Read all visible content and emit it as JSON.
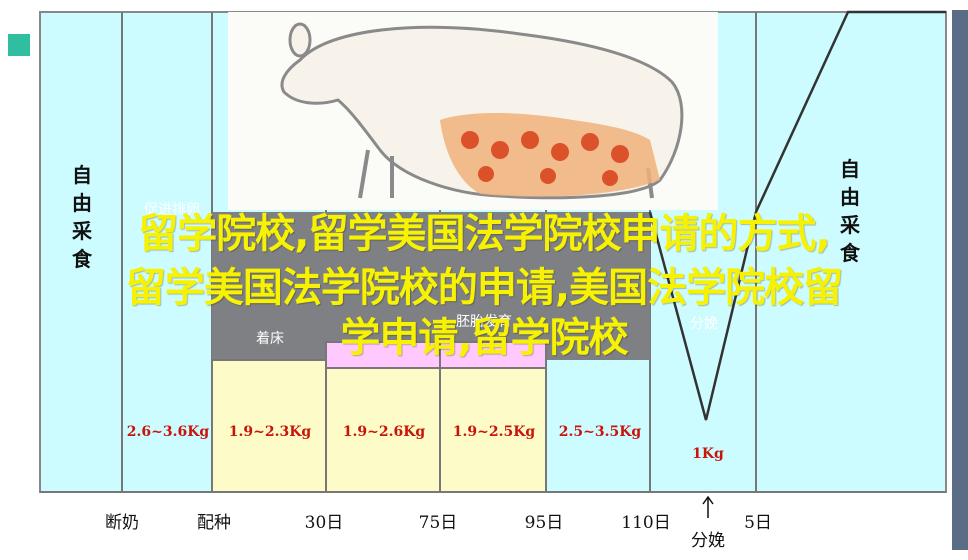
{
  "theme": {
    "bg_cyan": "#ccfcff",
    "band_gray": "#7f8084",
    "box_yellow": "#fdfcc8",
    "box_pink": "#ffc8ff",
    "accent_red": "#c8150a",
    "overlay_yellow": "#f6f200"
  },
  "diagram": {
    "left_vertical": "自由采食",
    "right_vertical": "自由采食",
    "stage_labels": [
      "促进排卵",
      "着床",
      "胚胎发育",
      "分娩"
    ],
    "weights": [
      "2.6~3.6Kg",
      "1.9~2.3Kg",
      "1.9~2.6Kg",
      "1.9~2.5Kg",
      "2.5~3.5Kg",
      "1Kg"
    ],
    "axis_labels": [
      "断奶",
      "配种",
      "30日",
      "75日",
      "95日",
      "110日",
      "5日"
    ],
    "farrow_marker": "分娩"
  },
  "overlay": {
    "lines": [
      "留学院校,留学美国法学院校申请的方式,",
      "留学美国法学院校的申请,美国法学院校留",
      "学申请,留学院校"
    ]
  }
}
